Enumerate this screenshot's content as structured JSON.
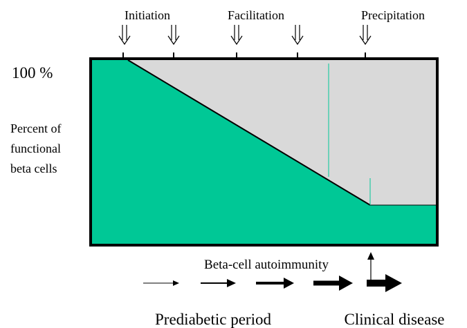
{
  "stages": [
    "Initiation",
    "Facilitation",
    "Precipitation"
  ],
  "y_max_label": "100 %",
  "y_label": [
    "Percent of",
    "functional",
    "beta cells"
  ],
  "process_label": "Beta-cell autoimmunity",
  "periods": [
    "Prediabetic period",
    "Clinical disease"
  ]
}
